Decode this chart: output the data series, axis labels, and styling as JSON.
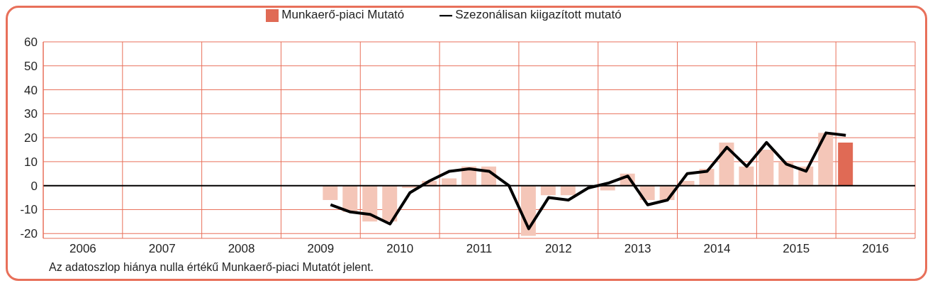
{
  "chart_data": {
    "type": "bar",
    "x": [
      2009.625,
      2009.875,
      2010.125,
      2010.375,
      2010.625,
      2010.875,
      2011.125,
      2011.375,
      2011.625,
      2011.875,
      2012.125,
      2012.375,
      2012.625,
      2012.875,
      2013.125,
      2013.375,
      2013.625,
      2013.875,
      2014.125,
      2014.375,
      2014.625,
      2014.875,
      2015.125,
      2015.375,
      2015.625,
      2015.875,
      2016.125
    ],
    "series": [
      {
        "name": "Munkaerő-piaci Mutató",
        "color": "#e06a55",
        "colors": [
          "#f4c6b8",
          "#f4c6b8",
          "#f4c6b8",
          "#f4c6b8",
          "#f4c6b8",
          "#f4c6b8",
          "#f4c6b8",
          "#f4c6b8",
          "#f4c6b8",
          "#f4c6b8",
          "#f4c6b8",
          "#f4c6b8",
          "#f4c6b8",
          "#f4c6b8",
          "#f4c6b8",
          "#f4c6b8",
          "#f4c6b8",
          "#f4c6b8",
          "#f4c6b8",
          "#f4c6b8",
          "#f4c6b8",
          "#f4c6b8",
          "#f4c6b8",
          "#f4c6b8",
          "#f4c6b8",
          "#f4c6b8",
          "#e06a55"
        ],
        "values": [
          -6,
          -11,
          -15,
          -15,
          -1,
          2,
          3,
          8,
          8,
          0,
          -21,
          -4,
          -4,
          null,
          -2,
          5,
          -6,
          -6,
          2,
          7,
          18,
          8,
          15,
          10,
          8,
          22,
          18
        ]
      },
      {
        "type": "line",
        "name": "Szezonálisan kiigazított mutató",
        "color": "#000000",
        "values": [
          -8,
          -11,
          -12,
          -16,
          -3,
          2,
          6,
          7,
          6,
          0,
          -18,
          -5,
          -6,
          -1,
          1,
          4,
          -8,
          -6,
          5,
          6,
          16,
          8,
          18,
          9,
          6,
          22,
          21
        ]
      }
    ],
    "xlim": [
      2006,
      2017
    ],
    "xticks": [
      {
        "value": 2006,
        "label": null
      },
      {
        "value": 2006.5,
        "label": "2006"
      },
      {
        "value": 2007,
        "label": null
      },
      {
        "value": 2007.5,
        "label": "2007"
      },
      {
        "value": 2008,
        "label": null
      },
      {
        "value": 2008.5,
        "label": "2008"
      },
      {
        "value": 2009,
        "label": null
      },
      {
        "value": 2009.5,
        "label": "2009"
      },
      {
        "value": 2010,
        "label": null
      },
      {
        "value": 2010.5,
        "label": "2010"
      },
      {
        "value": 2011,
        "label": null
      },
      {
        "value": 2011.5,
        "label": "2011"
      },
      {
        "value": 2012,
        "label": null
      },
      {
        "value": 2012.5,
        "label": "2012"
      },
      {
        "value": 2013,
        "label": null
      },
      {
        "value": 2013.5,
        "label": "2013"
      },
      {
        "value": 2014,
        "label": null
      },
      {
        "value": 2014.5,
        "label": "2014"
      },
      {
        "value": 2015,
        "label": null
      },
      {
        "value": 2015.5,
        "label": "2015"
      },
      {
        "value": 2016,
        "label": null
      },
      {
        "value": 2016.5,
        "label": "2016"
      },
      {
        "value": 2017,
        "label": null
      }
    ],
    "ylim": [
      -22,
      60
    ],
    "yticks": [
      -20,
      -10,
      0,
      10,
      20,
      30,
      40,
      50,
      60
    ],
    "ref_lines": [
      {
        "axis": "y",
        "value": 0,
        "color": "#000000"
      }
    ],
    "grid": true,
    "legend": "top",
    "marker": "none",
    "line_style": "solid",
    "annotations": [
      "Az adatoszlop hiánya nulla értékű Munkaerő-piaci Mutatót jelent."
    ]
  }
}
